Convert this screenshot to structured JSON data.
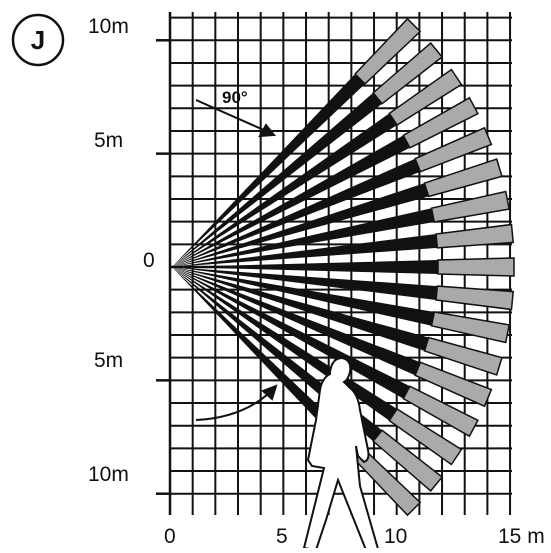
{
  "badge": "J",
  "angle_label": "90°",
  "y_labels": [
    "10m",
    "5m",
    "0",
    "5m",
    "10m"
  ],
  "x_labels": [
    "0",
    "5",
    "10",
    "15 m"
  ]
}
